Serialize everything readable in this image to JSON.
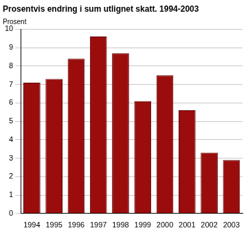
{
  "chart_data": {
    "type": "bar",
    "title": "Prosentvis endring i sum utlignet skatt. 1994-2003",
    "ylabel": "Prosent",
    "categories": [
      "1994",
      "1995",
      "1996",
      "1997",
      "1998",
      "1999",
      "2000",
      "2001",
      "2002",
      "2003"
    ],
    "values": [
      7.1,
      7.3,
      8.4,
      9.6,
      8.7,
      6.1,
      7.5,
      5.6,
      3.3,
      2.9
    ],
    "color": "#9b0d0d",
    "ylim": [
      0,
      10
    ],
    "yticks": [
      0,
      1,
      2,
      3,
      4,
      5,
      6,
      7,
      8,
      9,
      10
    ],
    "grid": true
  }
}
